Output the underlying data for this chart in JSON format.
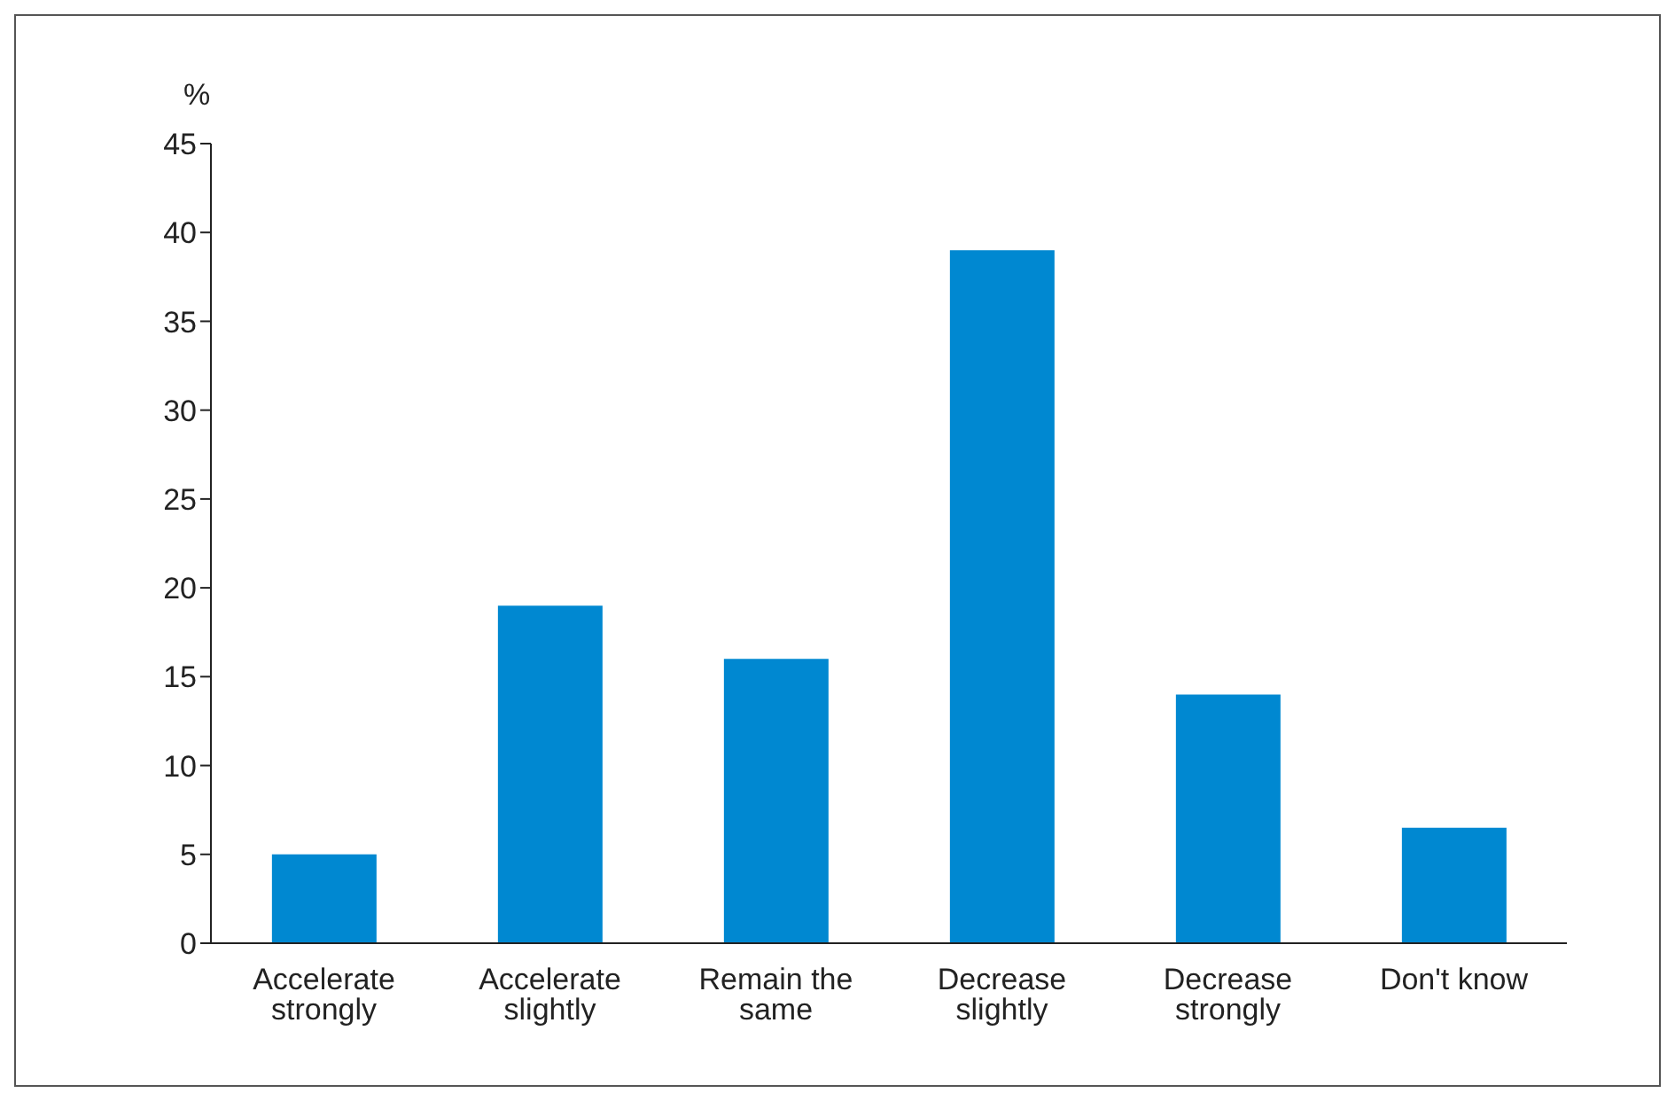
{
  "chart_data": {
    "type": "bar",
    "ylabel": "%",
    "categories": [
      "Accelerate strongly",
      "Accelerate slightly",
      "Remain the same",
      "Decrease slightly",
      "Decrease strongly",
      "Don't know"
    ],
    "values": [
      5,
      19,
      16,
      39,
      14,
      6.5
    ],
    "color": "#0088d1",
    "ylim": [
      0,
      45
    ],
    "yticks": [
      0,
      5,
      10,
      15,
      20,
      25,
      30,
      35,
      40,
      45
    ],
    "grid": false
  }
}
